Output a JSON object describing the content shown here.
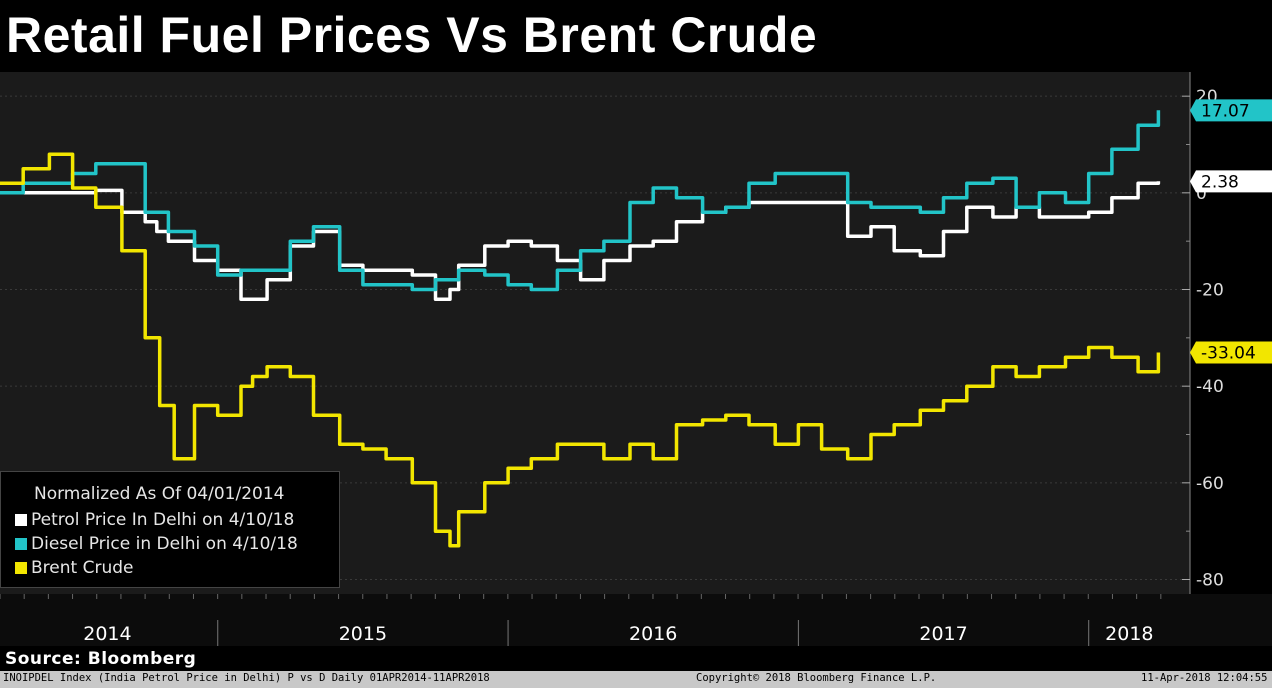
{
  "title": "Retail Fuel Prices Vs Brent Crude",
  "source": "Source: Bloomberg",
  "footer": {
    "left": "INOIPDEL Index (India Petrol Price in Delhi) P vs D  Daily 01APR2014-11APR2018",
    "center": "Copyright© 2018 Bloomberg Finance L.P.",
    "right": "11-Apr-2018 12:04:55"
  },
  "legend": {
    "title": "Normalized As Of 04/01/2014",
    "items": [
      {
        "label": "Petrol Price In Delhi on 4/10/18",
        "color": "#ffffff"
      },
      {
        "label": "Diesel Price in Delhi on 4/10/18",
        "color": "#22c4c8"
      },
      {
        "label": "Brent Crude",
        "color": "#f2e600"
      }
    ]
  },
  "chart_data": {
    "type": "line",
    "title": "Retail Fuel Prices Vs Brent Crude",
    "ylim": [
      -83,
      25
    ],
    "yticks": [
      20,
      0,
      -20,
      -40,
      -60,
      -80
    ],
    "ytick_labels": [
      "20",
      "0",
      "-20",
      "-40",
      "-60",
      "-80"
    ],
    "xlim": [
      2014.25,
      2018.28
    ],
    "x_tick_labels": [
      {
        "label": "2014",
        "center": 2014.62
      },
      {
        "label": "2015",
        "center": 2015.5
      },
      {
        "label": "2016",
        "center": 2016.5
      },
      {
        "label": "2017",
        "center": 2017.5
      },
      {
        "label": "2018",
        "center": 2018.14
      }
    ],
    "x_separators": [
      2015.0,
      2016.0,
      2017.0,
      2018.0
    ],
    "series": [
      {
        "name": "Petrol Price In Delhi on 4/10/18",
        "color": "#ffffff",
        "last_value": "2.38",
        "x": [
          2014.25,
          2014.33,
          2014.42,
          2014.5,
          2014.58,
          2014.67,
          2014.75,
          2014.79,
          2014.83,
          2014.92,
          2015.0,
          2015.08,
          2015.12,
          2015.17,
          2015.25,
          2015.33,
          2015.42,
          2015.5,
          2015.58,
          2015.67,
          2015.72,
          2015.75,
          2015.8,
          2015.83,
          2015.92,
          2016.0,
          2016.08,
          2016.17,
          2016.25,
          2016.33,
          2016.42,
          2016.5,
          2016.58,
          2016.67,
          2016.75,
          2016.83,
          2016.92,
          2017.0,
          2017.08,
          2017.17,
          2017.25,
          2017.33,
          2017.42,
          2017.5,
          2017.58,
          2017.67,
          2017.75,
          2017.83,
          2017.92,
          2018.0,
          2018.08,
          2018.17,
          2018.24
        ],
        "values": [
          0,
          0,
          0,
          0,
          0.5,
          -4,
          -6,
          -8,
          -10,
          -14,
          -16,
          -22,
          -22,
          -18,
          -11,
          -8,
          -15,
          -16,
          -16,
          -17,
          -17,
          -22,
          -20,
          -15,
          -11,
          -10,
          -11,
          -14,
          -18,
          -14,
          -11,
          -10,
          -6,
          -4,
          -3,
          -2,
          -2,
          -2,
          -2,
          -9,
          -7,
          -12,
          -13,
          -8,
          -3,
          -5,
          -3,
          -5,
          -5,
          -4,
          -1,
          2,
          2.38
        ]
      },
      {
        "name": "Diesel Price in Delhi on 4/10/18",
        "color": "#22c4c8",
        "last_value": "17.07",
        "x": [
          2014.25,
          2014.33,
          2014.42,
          2014.5,
          2014.58,
          2014.67,
          2014.75,
          2014.83,
          2014.92,
          2015.0,
          2015.08,
          2015.17,
          2015.25,
          2015.33,
          2015.42,
          2015.5,
          2015.58,
          2015.67,
          2015.75,
          2015.83,
          2015.92,
          2016.0,
          2016.08,
          2016.17,
          2016.25,
          2016.33,
          2016.42,
          2016.5,
          2016.58,
          2016.67,
          2016.75,
          2016.83,
          2016.92,
          2017.0,
          2017.08,
          2017.17,
          2017.25,
          2017.33,
          2017.42,
          2017.5,
          2017.58,
          2017.67,
          2017.75,
          2017.83,
          2017.92,
          2018.0,
          2018.08,
          2018.17,
          2018.24
        ],
        "values": [
          0,
          2,
          2,
          4,
          6,
          6,
          -4,
          -8,
          -11,
          -17,
          -16,
          -16,
          -10,
          -7,
          -16,
          -19,
          -19,
          -20,
          -18,
          -16,
          -17,
          -19,
          -20,
          -16,
          -12,
          -10,
          -2,
          1,
          -1,
          -4,
          -3,
          2,
          4,
          4,
          4,
          -2,
          -3,
          -3,
          -4,
          -1,
          2,
          3,
          -3,
          0,
          -2,
          4,
          9,
          14,
          17.07
        ]
      },
      {
        "name": "Brent Crude",
        "color": "#f2e600",
        "last_value": "-33.04",
        "x": [
          2014.25,
          2014.33,
          2014.42,
          2014.5,
          2014.58,
          2014.67,
          2014.75,
          2014.8,
          2014.85,
          2014.92,
          2015.0,
          2015.08,
          2015.12,
          2015.17,
          2015.25,
          2015.33,
          2015.42,
          2015.5,
          2015.58,
          2015.67,
          2015.75,
          2015.8,
          2015.83,
          2015.92,
          2016.0,
          2016.08,
          2016.17,
          2016.25,
          2016.33,
          2016.42,
          2016.5,
          2016.58,
          2016.67,
          2016.75,
          2016.83,
          2016.92,
          2017.0,
          2017.08,
          2017.17,
          2017.25,
          2017.33,
          2017.42,
          2017.5,
          2017.58,
          2017.67,
          2017.75,
          2017.83,
          2017.92,
          2018.0,
          2018.08,
          2018.17,
          2018.24
        ],
        "values": [
          2,
          5,
          8,
          1,
          -3,
          -12,
          -30,
          -44,
          -55,
          -44,
          -46,
          -40,
          -38,
          -36,
          -38,
          -46,
          -52,
          -53,
          -55,
          -60,
          -70,
          -73,
          -66,
          -60,
          -57,
          -55,
          -52,
          -52,
          -55,
          -52,
          -55,
          -48,
          -47,
          -46,
          -48,
          -52,
          -48,
          -53,
          -55,
          -50,
          -48,
          -45,
          -43,
          -40,
          -36,
          -38,
          -36,
          -34,
          -32,
          -34,
          -37,
          -33.04
        ]
      }
    ]
  }
}
